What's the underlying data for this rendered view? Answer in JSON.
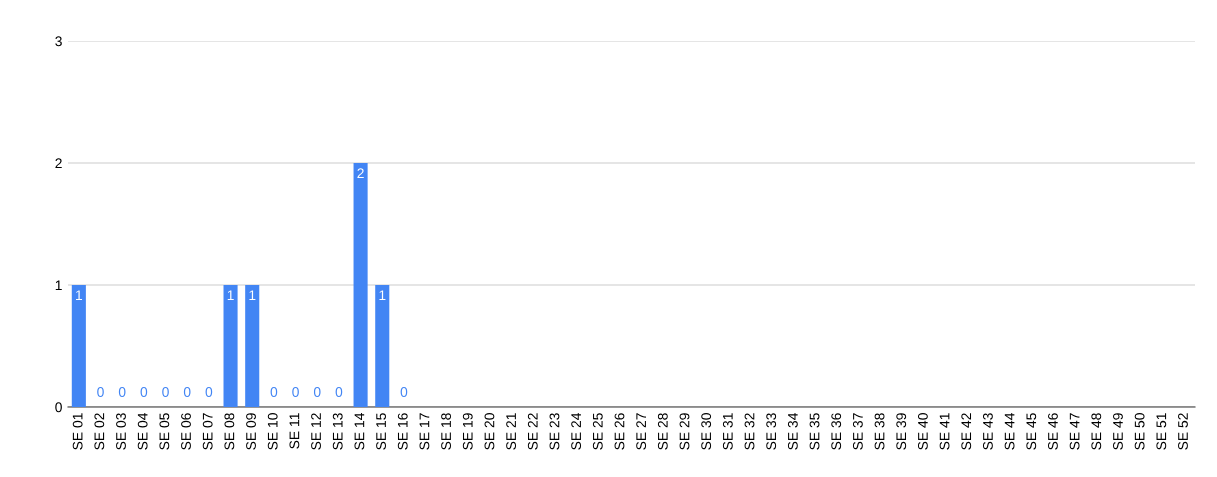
{
  "chart_data": {
    "type": "bar",
    "categories": [
      "SE 01",
      "SE 02",
      "SE 03",
      "SE 04",
      "SE 05",
      "SE 06",
      "SE 07",
      "SE 08",
      "SE 09",
      "SE 10",
      "SE 11",
      "SE 12",
      "SE 13",
      "SE 14",
      "SE 15",
      "SE 16",
      "SE 17",
      "SE 18",
      "SE 19",
      "SE 20",
      "SE 21",
      "SE 22",
      "SE 23",
      "SE 24",
      "SE 25",
      "SE 26",
      "SE 27",
      "SE 28",
      "SE 29",
      "SE 30",
      "SE 31",
      "SE 32",
      "SE 33",
      "SE 34",
      "SE 35",
      "SE 36",
      "SE 37",
      "SE 38",
      "SE 39",
      "SE 40",
      "SE 41",
      "SE 42",
      "SE 43",
      "SE 44",
      "SE 45",
      "SE 46",
      "SE 47",
      "SE 48",
      "SE 49",
      "SE 50",
      "SE 51",
      "SE 52"
    ],
    "values": [
      1,
      0,
      0,
      0,
      0,
      0,
      0,
      1,
      1,
      0,
      0,
      0,
      0,
      2,
      1,
      0,
      null,
      null,
      null,
      null,
      null,
      null,
      null,
      null,
      null,
      null,
      null,
      null,
      null,
      null,
      null,
      null,
      null,
      null,
      null,
      null,
      null,
      null,
      null,
      null,
      null,
      null,
      null,
      null,
      null,
      null,
      null,
      null,
      null,
      null,
      null,
      null
    ],
    "color": "#4285f4",
    "ylim": [
      0,
      3
    ],
    "yticks": [
      0,
      1,
      2,
      3
    ],
    "grid": "y",
    "data_labels": true,
    "legend": false
  }
}
